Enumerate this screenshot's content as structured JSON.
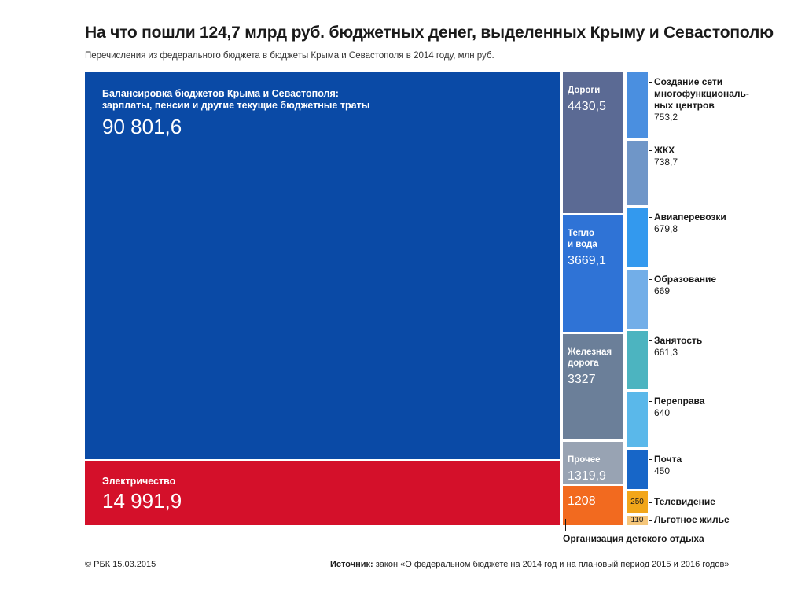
{
  "title": "На что пошли 124,7 млрд руб. бюджетных денег, выделенных Крыму и Севастополю",
  "subtitle": "Перечисления из федерального бюджета в бюджеты Крыма и Севастополя в 2014 году, млн руб.",
  "footer": {
    "credit": "© РБК 15.03.2015",
    "source_label": "Источник:",
    "source_text": " закон «О федеральном бюджете на 2014 год и на плановый период 2015 и 2016 годов»"
  },
  "chart_data": {
    "type": "treemap",
    "title": "На что пошли 124,7 млрд руб. бюджетных денег, выделенных Крыму и Севастополю",
    "units": "млн руб.",
    "items": [
      {
        "name": "Балансировка бюджетов Крыма и Севастополя:\nзарплаты, пенсии и другие текущие бюджетные траты",
        "value": 90801.6,
        "display": "90 801,6",
        "color": "#0a4aa6"
      },
      {
        "name": "Электричество",
        "value": 14991.9,
        "display": "14 991,9",
        "color": "#d4102a"
      },
      {
        "name": "Дороги",
        "value": 4430.5,
        "display": "4430,5",
        "color": "#5b6a94"
      },
      {
        "name": "Тепло\nи вода",
        "value": 3669.1,
        "display": "3669,1",
        "color": "#2f73d6"
      },
      {
        "name": "Железная\nдорога",
        "value": 3327,
        "display": "3327",
        "color": "#6b7f99"
      },
      {
        "name": "Прочее",
        "value": 1319.9,
        "display": "1319,9",
        "color": "#98a3b3"
      },
      {
        "name": "Организация детского отдыха",
        "value": 1208,
        "display": "1208",
        "color": "#f26a1f"
      },
      {
        "name": "Создание сети\nмногофункциональ-\nных центров",
        "value": 753.2,
        "display": "753,2",
        "color": "#4a8fe0"
      },
      {
        "name": "ЖКХ",
        "value": 738.7,
        "display": "738,7",
        "color": "#6f96c8"
      },
      {
        "name": "Авиаперевозки",
        "value": 679.8,
        "display": "679,8",
        "color": "#3399ee"
      },
      {
        "name": "Образование",
        "value": 669,
        "display": "669",
        "color": "#72aee8"
      },
      {
        "name": "Занятость",
        "value": 661.3,
        "display": "661,3",
        "color": "#4cb4c0"
      },
      {
        "name": "Переправа",
        "value": 640,
        "display": "640",
        "color": "#5ab8ea"
      },
      {
        "name": "Почта",
        "value": 450,
        "display": "450",
        "color": "#1766c8"
      },
      {
        "name": "Телевидение",
        "value": 250,
        "display": "250",
        "color": "#f2a61a"
      },
      {
        "name": "Льготное жилье",
        "value": 110,
        "display": "110",
        "color": "#f5c67a"
      }
    ]
  }
}
